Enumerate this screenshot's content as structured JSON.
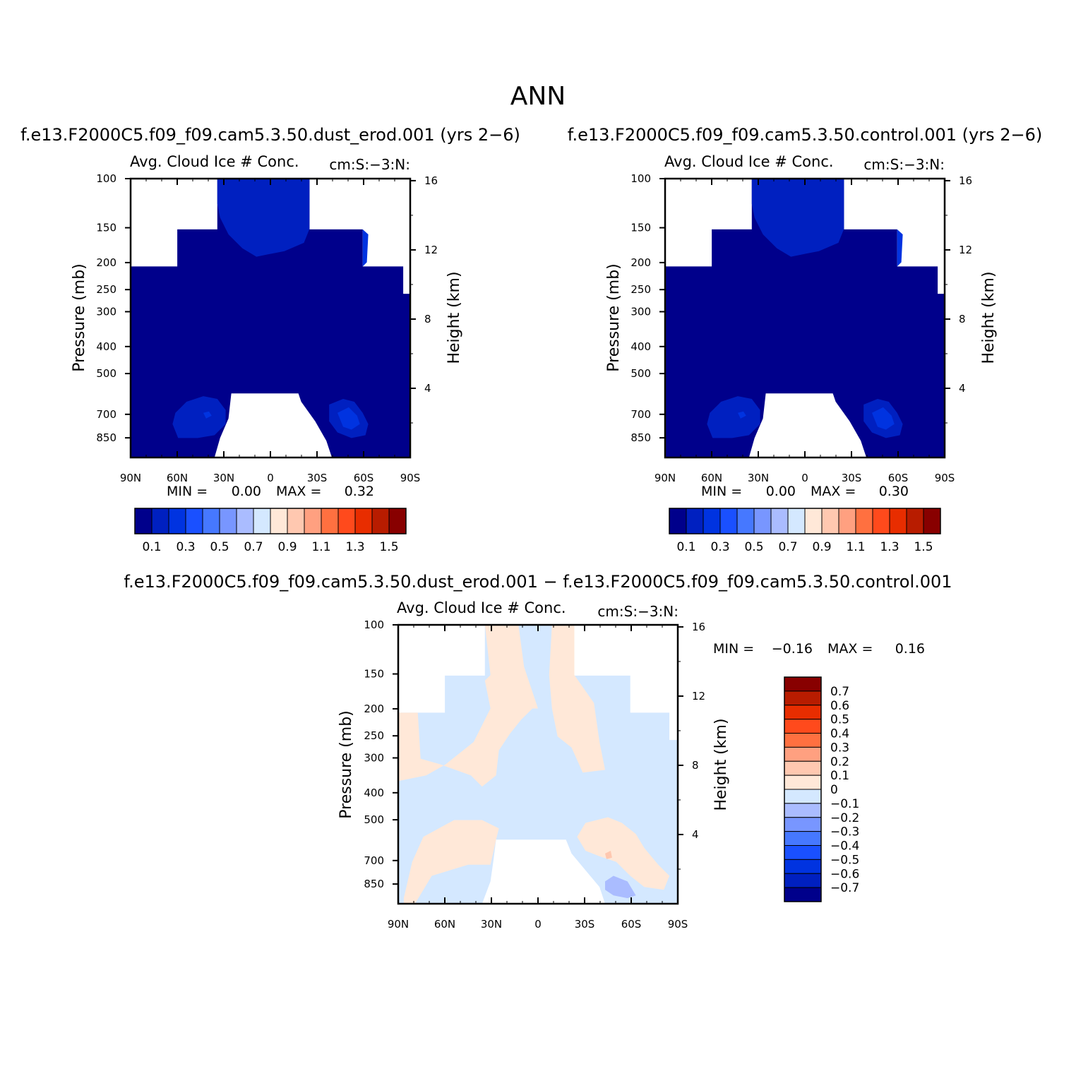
{
  "page_title": "ANN",
  "colors": {
    "white": "#ffffff",
    "frame": "#000000"
  },
  "chart_data": [
    {
      "id": "p1",
      "type": "contour",
      "title": "f.e13.F2000C5.f09_f09.cam5.3.50.dust_erod.001 (yrs 2−6)",
      "subtitle": "Avg. Cloud Ice # Conc.",
      "units": "cm:S:−3:N:",
      "ylabel": "Pressure (mb)",
      "y2label": "Height (km)",
      "x_ticks": [
        "90N",
        "60N",
        "30N",
        "0",
        "30S",
        "60S",
        "90S"
      ],
      "x_range": [
        -90,
        90
      ],
      "y_ticks": [
        100,
        150,
        200,
        250,
        300,
        400,
        500,
        700,
        850
      ],
      "y_range_mb": [
        100,
        1000
      ],
      "y2_ticks": [
        16,
        12,
        8,
        4
      ],
      "min_label": "MIN =",
      "min_value": "0.00",
      "max_label": "MAX =",
      "max_value": "0.32",
      "colorbar_labels": [
        "0.1",
        "0.3",
        "0.5",
        "0.7",
        "0.9",
        "1.1",
        "1.3",
        "1.5"
      ],
      "colorbar_colors": [
        "#00008b",
        "#0020c0",
        "#0033e0",
        "#1a50ff",
        "#4678ff",
        "#7896ff",
        "#aabcff",
        "#d4e8ff",
        "#ffe8d8",
        "#ffc8b0",
        "#ffa080",
        "#ff7040",
        "#ff4a1c",
        "#e82d00",
        "#b81c00",
        "#880000"
      ],
      "colorbar_placement": "bottom"
    },
    {
      "id": "p2",
      "type": "contour",
      "title": "f.e13.F2000C5.f09_f09.cam5.3.50.control.001 (yrs 2−6)",
      "subtitle": "Avg. Cloud Ice # Conc.",
      "units": "cm:S:−3:N:",
      "ylabel": "Pressure (mb)",
      "y2label": "Height (km)",
      "x_ticks": [
        "90N",
        "60N",
        "30N",
        "0",
        "30S",
        "60S",
        "90S"
      ],
      "x_range": [
        -90,
        90
      ],
      "y_ticks": [
        100,
        150,
        200,
        250,
        300,
        400,
        500,
        700,
        850
      ],
      "y_range_mb": [
        100,
        1000
      ],
      "y2_ticks": [
        16,
        12,
        8,
        4
      ],
      "min_label": "MIN =",
      "min_value": "0.00",
      "max_label": "MAX =",
      "max_value": "0.30",
      "colorbar_labels": [
        "0.1",
        "0.3",
        "0.5",
        "0.7",
        "0.9",
        "1.1",
        "1.3",
        "1.5"
      ],
      "colorbar_colors": [
        "#00008b",
        "#0020c0",
        "#0033e0",
        "#1a50ff",
        "#4678ff",
        "#7896ff",
        "#aabcff",
        "#d4e8ff",
        "#ffe8d8",
        "#ffc8b0",
        "#ffa080",
        "#ff7040",
        "#ff4a1c",
        "#e82d00",
        "#b81c00",
        "#880000"
      ],
      "colorbar_placement": "bottom"
    },
    {
      "id": "p3",
      "type": "contour",
      "title": "f.e13.F2000C5.f09_f09.cam5.3.50.dust_erod.001 − f.e13.F2000C5.f09_f09.cam5.3.50.control.001",
      "subtitle": "Avg. Cloud Ice # Conc.",
      "units": "cm:S:−3:N:",
      "ylabel": "Pressure (mb)",
      "y2label": "Height (km)",
      "x_ticks": [
        "90N",
        "60N",
        "30N",
        "0",
        "30S",
        "60S",
        "90S"
      ],
      "x_range": [
        -90,
        90
      ],
      "y_ticks": [
        100,
        150,
        200,
        250,
        300,
        400,
        500,
        700,
        850
      ],
      "y_range_mb": [
        100,
        1000
      ],
      "y2_ticks": [
        16,
        12,
        8,
        4
      ],
      "min_label": "MIN =",
      "min_value": "−0.16",
      "max_label": "MAX =",
      "max_value": "0.16",
      "colorbar_labels": [
        "0.7",
        "0.6",
        "0.5",
        "0.4",
        "0.3",
        "0.2",
        "0.1",
        "0",
        "−0.1",
        "−0.2",
        "−0.3",
        "−0.4",
        "−0.5",
        "−0.6",
        "−0.7"
      ],
      "colorbar_colors": [
        "#880000",
        "#b81c00",
        "#e82d00",
        "#ff4a1c",
        "#ff7040",
        "#ffa080",
        "#ffc8b0",
        "#ffe8d8",
        "#d4e8ff",
        "#aabcff",
        "#7896ff",
        "#4678ff",
        "#1a50ff",
        "#0033e0",
        "#0020c0",
        "#00008b"
      ],
      "colorbar_placement": "right"
    }
  ]
}
